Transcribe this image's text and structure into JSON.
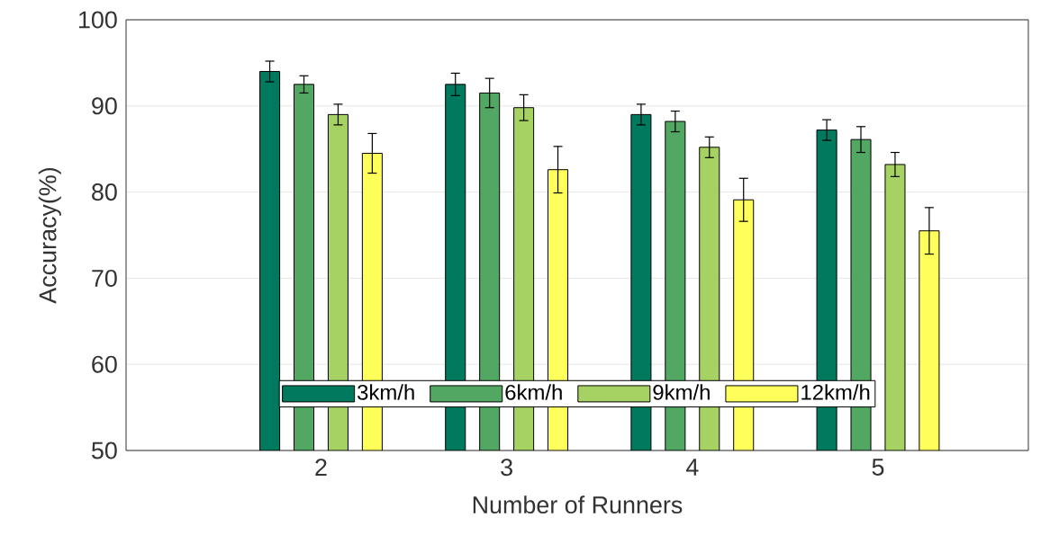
{
  "chart_data": {
    "type": "bar",
    "xlabel": "Number of Runners",
    "ylabel": "Accuracy(%)",
    "categories": [
      "2",
      "3",
      "4",
      "5"
    ],
    "series": [
      {
        "name": "3km/h",
        "color": "#007a5e",
        "values": [
          94.0,
          92.5,
          89.0,
          87.2
        ],
        "errors": [
          1.2,
          1.3,
          1.2,
          1.2
        ]
      },
      {
        "name": "6km/h",
        "color": "#52a862",
        "values": [
          92.5,
          91.5,
          88.2,
          86.1
        ],
        "errors": [
          1.0,
          1.7,
          1.2,
          1.5
        ]
      },
      {
        "name": "9km/h",
        "color": "#a6d264",
        "values": [
          89.0,
          89.8,
          85.2,
          83.2
        ],
        "errors": [
          1.2,
          1.5,
          1.2,
          1.4
        ]
      },
      {
        "name": "12km/h",
        "color": "#ffff5c",
        "values": [
          84.5,
          82.6,
          79.1,
          75.5
        ],
        "errors": [
          2.3,
          2.7,
          2.5,
          2.7
        ]
      }
    ],
    "ylim": [
      50,
      100
    ],
    "yticks": [
      50,
      60,
      70,
      80,
      90,
      100
    ],
    "grid": "y",
    "legend": "bottom"
  }
}
